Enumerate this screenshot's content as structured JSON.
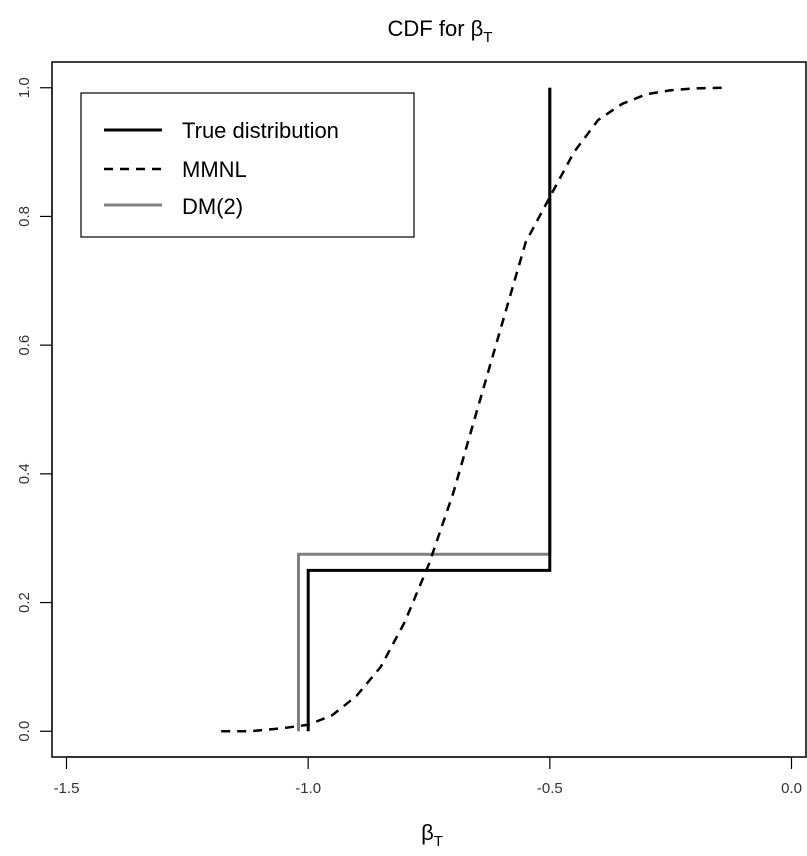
{
  "chart_data": {
    "type": "line",
    "title": {
      "main": "CDF for β",
      "sub": "T"
    },
    "xlabel": {
      "main": "β",
      "sub": "T"
    },
    "ylabel": "",
    "xlim": [
      -1.53,
      0.03
    ],
    "ylim": [
      -0.04,
      1.04
    ],
    "xticks": [
      -1.5,
      -1.0,
      -0.5,
      0.0
    ],
    "xtick_labels": [
      "-1.5",
      "-1.0",
      "-0.5",
      "0.0"
    ],
    "yticks": [
      0.0,
      0.2,
      0.4,
      0.6,
      0.8,
      1.0
    ],
    "ytick_labels": [
      "0.0",
      "0.2",
      "0.4",
      "0.6",
      "0.8",
      "1.0"
    ],
    "grid": false,
    "legend_position": "top-left",
    "series": [
      {
        "name": "True distribution",
        "style": "solid",
        "color": "#000000",
        "x": [
          -1.0,
          -1.0,
          -0.5,
          -0.5
        ],
        "y": [
          0.0,
          0.25,
          0.25,
          1.0
        ]
      },
      {
        "name": "MMNL",
        "style": "dashed",
        "color": "#000000",
        "x": [
          -1.18,
          -1.12,
          -1.05,
          -1.0,
          -0.95,
          -0.9,
          -0.85,
          -0.8,
          -0.75,
          -0.7,
          -0.65,
          -0.6,
          -0.55,
          -0.5,
          -0.45,
          -0.4,
          -0.35,
          -0.3,
          -0.25,
          -0.2,
          -0.14
        ],
        "y": [
          0.0,
          0.0,
          0.005,
          0.01,
          0.025,
          0.055,
          0.1,
          0.17,
          0.26,
          0.37,
          0.5,
          0.63,
          0.76,
          0.83,
          0.9,
          0.95,
          0.975,
          0.99,
          0.996,
          0.999,
          1.0
        ]
      },
      {
        "name": "DM(2)",
        "style": "solid",
        "color": "#808080",
        "x": [
          -1.02,
          -1.02,
          -0.5,
          -0.5
        ],
        "y": [
          0.0,
          0.275,
          0.275,
          1.0
        ]
      }
    ]
  },
  "colors": {
    "frame": "#000000",
    "true_distribution": "#000000",
    "mmnl": "#000000",
    "dm2": "#808080"
  }
}
